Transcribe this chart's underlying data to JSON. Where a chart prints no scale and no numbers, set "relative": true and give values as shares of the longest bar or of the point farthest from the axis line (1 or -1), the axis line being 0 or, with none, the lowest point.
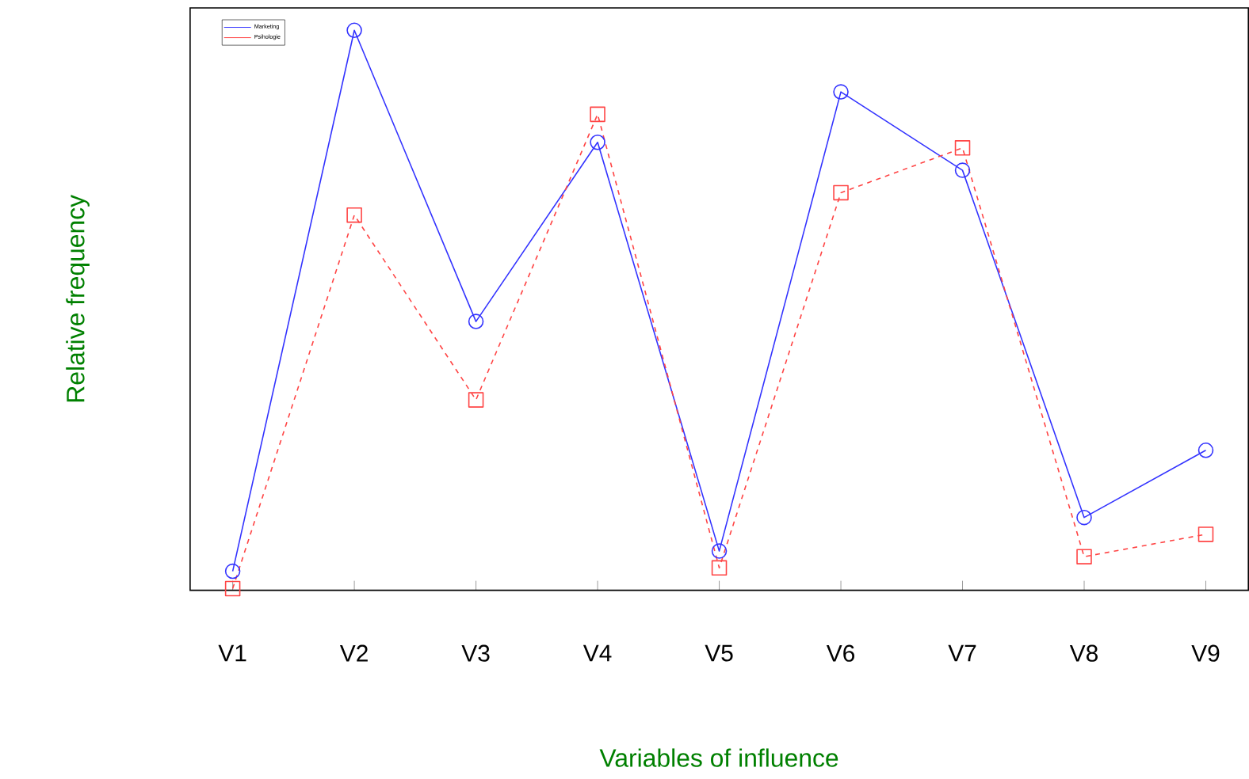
{
  "chart_data": {
    "type": "line",
    "relative": true,
    "xlabel": "Variables of influence",
    "ylabel": "Relative frequency",
    "categories": [
      "V1",
      "V2",
      "V3",
      "V4",
      "V5",
      "V6",
      "V7",
      "V8",
      "V9"
    ],
    "legend": "top left",
    "series": [
      {
        "name": "Marketing",
        "color": "#3333ff",
        "marker": "circle",
        "line_style": "solid",
        "values": [
          0.034,
          1.0,
          0.48,
          0.8,
          0.07,
          0.89,
          0.75,
          0.13,
          0.25
        ]
      },
      {
        "name": "Psihologie",
        "color": "#ff4444",
        "marker": "square",
        "line_style": "dashed",
        "values": [
          0.003,
          0.67,
          0.34,
          0.85,
          0.04,
          0.71,
          0.79,
          0.06,
          0.1
        ]
      }
    ]
  }
}
